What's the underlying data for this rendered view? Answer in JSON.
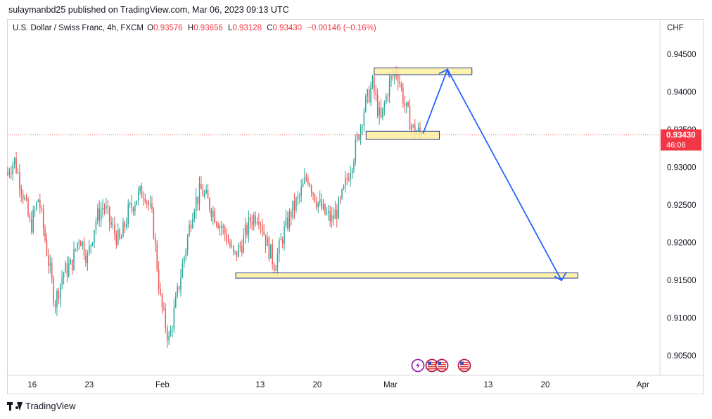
{
  "header": {
    "publisher_line": "sulaymanbd25 published on TradingView.com, Mar 06, 2023 09:13 UTC"
  },
  "legend": {
    "symbol": "U.S. Dollar / Swiss Franc, 4h, FXCM",
    "o_label": "O",
    "o_value": "0.93576",
    "h_label": "H",
    "h_value": "0.93656",
    "l_label": "L",
    "l_value": "0.93128",
    "c_label": "C",
    "c_value": "0.93430",
    "change": "−0.00146 (−0.16%)"
  },
  "axis": {
    "currency": "CHF"
  },
  "price_tag": {
    "price": "0.93430",
    "countdown": "46:06"
  },
  "colors": {
    "up": "#26a69a",
    "down": "#ef5350",
    "zone_fill": "#fbef9f",
    "zone_stroke": "#2a3b8f",
    "arrow": "#2962ff",
    "price_line": "#ef5350"
  },
  "footer": {
    "brand": "TradingView"
  },
  "icons": [
    "lightning-event-icon",
    "us-flag-event-icon",
    "us-flag-event-icon",
    "us-flag-event-icon"
  ],
  "chart_data": {
    "type": "candlestick",
    "title": "U.S. Dollar / Swiss Franc, 4h, FXCM",
    "y_ticks": [
      "0.94500",
      "0.94000",
      "0.93500",
      "0.93000",
      "0.92500",
      "0.92000",
      "0.91500",
      "0.91000",
      "0.90500"
    ],
    "y_tick_values": [
      0.945,
      0.94,
      0.935,
      0.93,
      0.925,
      0.92,
      0.915,
      0.91,
      0.905
    ],
    "ylim": [
      0.9025,
      0.9495
    ],
    "x_ticks": [
      "16",
      "23",
      "Feb",
      "13",
      "20",
      "Mar",
      "13",
      "20",
      "Apr"
    ],
    "x_tick_dates": [
      "2023-01-16",
      "2023-01-23",
      "2023-02-01",
      "2023-02-13",
      "2023-02-20",
      "2023-03-01",
      "2023-03-13",
      "2023-03-20",
      "2023-04-01"
    ],
    "xlim": [
      "2023-01-13",
      "2023-04-03"
    ],
    "last_price": 0.9343,
    "anchors": [
      [
        "2023-01-13",
        0.929
      ],
      [
        "2023-01-14",
        0.931
      ],
      [
        "2023-01-15",
        0.927
      ],
      [
        "2023-01-16",
        0.922
      ],
      [
        "2023-01-17",
        0.926
      ],
      [
        "2023-01-18",
        0.919
      ],
      [
        "2023-01-19",
        0.912
      ],
      [
        "2023-01-20",
        0.916
      ],
      [
        "2023-01-21",
        0.917
      ],
      [
        "2023-01-22",
        0.921
      ],
      [
        "2023-01-23",
        0.918
      ],
      [
        "2023-01-24",
        0.923
      ],
      [
        "2023-01-25",
        0.925
      ],
      [
        "2023-01-26",
        0.922
      ],
      [
        "2023-01-27",
        0.92
      ],
      [
        "2023-01-28",
        0.924
      ],
      [
        "2023-01-29",
        0.926
      ],
      [
        "2023-01-30",
        0.927
      ],
      [
        "2023-01-31",
        0.923
      ],
      [
        "2023-02-01",
        0.912
      ],
      [
        "2023-02-02",
        0.907
      ],
      [
        "2023-02-03",
        0.913
      ],
      [
        "2023-02-04",
        0.919
      ],
      [
        "2023-02-05",
        0.925
      ],
      [
        "2023-02-06",
        0.927
      ],
      [
        "2023-02-07",
        0.925
      ],
      [
        "2023-02-08",
        0.923
      ],
      [
        "2023-02-09",
        0.921
      ],
      [
        "2023-02-10",
        0.918
      ],
      [
        "2023-02-11",
        0.92
      ],
      [
        "2023-02-12",
        0.923
      ],
      [
        "2023-02-13",
        0.924
      ],
      [
        "2023-02-14",
        0.92
      ],
      [
        "2023-02-15",
        0.917
      ],
      [
        "2023-02-16",
        0.921
      ],
      [
        "2023-02-17",
        0.924
      ],
      [
        "2023-02-18",
        0.926
      ],
      [
        "2023-02-19",
        0.929
      ],
      [
        "2023-02-20",
        0.926
      ],
      [
        "2023-02-21",
        0.924
      ],
      [
        "2023-02-22",
        0.923
      ],
      [
        "2023-02-23",
        0.925
      ],
      [
        "2023-02-24",
        0.929
      ],
      [
        "2023-02-25",
        0.933
      ],
      [
        "2023-02-26",
        0.938
      ],
      [
        "2023-02-27",
        0.941
      ],
      [
        "2023-02-28",
        0.936
      ],
      [
        "2023-03-01",
        0.941
      ],
      [
        "2023-03-02",
        0.943
      ],
      [
        "2023-03-03",
        0.938
      ],
      [
        "2023-03-04",
        0.935
      ],
      [
        "2023-03-05",
        0.9343
      ]
    ],
    "annotations": [
      {
        "type": "zone",
        "from": "2023-02-27",
        "to": "2023-03-11",
        "low": 0.9423,
        "high": 0.9432
      },
      {
        "type": "zone",
        "from": "2023-02-26",
        "to": "2023-03-07",
        "low": 0.9337,
        "high": 0.9348
      },
      {
        "type": "zone",
        "from": "2023-02-10",
        "to": "2023-03-24",
        "low": 0.9153,
        "high": 0.916
      },
      {
        "type": "path",
        "points": [
          [
            "2023-03-05",
            0.9345
          ],
          [
            "2023-03-08",
            0.943
          ],
          [
            "2023-03-22",
            0.915
          ],
          [
            "2023-03-22",
            0.9165
          ]
        ]
      }
    ]
  }
}
